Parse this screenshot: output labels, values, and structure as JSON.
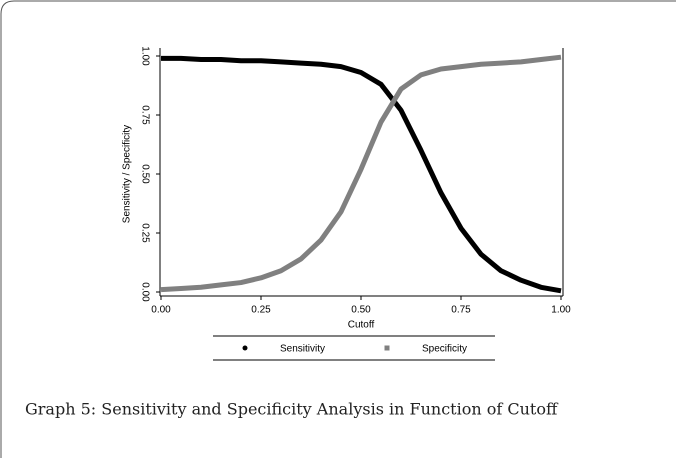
{
  "chart_data": {
    "type": "line",
    "caption": "Graph 5: Sensitivity and Specificity Analysis in Function of Cutoff",
    "xlabel": "Cutoff",
    "ylabel": "Sensitivity / Specificity",
    "x": [
      0,
      0.05,
      0.1,
      0.15,
      0.2,
      0.25,
      0.3,
      0.35,
      0.4,
      0.45,
      0.5,
      0.55,
      0.6,
      0.65,
      0.7,
      0.75,
      0.8,
      0.85,
      0.9,
      0.95,
      1.0
    ],
    "series": [
      {
        "name": "Sensitivity",
        "color": "#000000",
        "marker": "circle",
        "values": [
          0.99,
          0.99,
          0.985,
          0.985,
          0.98,
          0.98,
          0.975,
          0.97,
          0.965,
          0.955,
          0.93,
          0.88,
          0.77,
          0.6,
          0.42,
          0.27,
          0.16,
          0.09,
          0.05,
          0.02,
          0.005
        ]
      },
      {
        "name": "Specificity",
        "color": "#808080",
        "marker": "square",
        "values": [
          0.01,
          0.015,
          0.02,
          0.03,
          0.04,
          0.06,
          0.09,
          0.14,
          0.22,
          0.34,
          0.52,
          0.72,
          0.86,
          0.92,
          0.945,
          0.955,
          0.965,
          0.97,
          0.975,
          0.985,
          0.995
        ]
      }
    ],
    "xlim": [
      0,
      1
    ],
    "ylim": [
      0,
      1
    ],
    "xticks": [
      {
        "value": 0,
        "label": "0.00"
      },
      {
        "value": 0.25,
        "label": "0.25"
      },
      {
        "value": 0.5,
        "label": "0.50"
      },
      {
        "value": 0.75,
        "label": "0.75"
      },
      {
        "value": 1,
        "label": "1.00"
      }
    ],
    "yticks": [
      {
        "value": 0,
        "label": "0.00"
      },
      {
        "value": 0.25,
        "label": "0.25"
      },
      {
        "value": 0.5,
        "label": "0.50"
      },
      {
        "value": 0.75,
        "label": "0.75"
      },
      {
        "value": 1,
        "label": "1.00"
      }
    ]
  }
}
